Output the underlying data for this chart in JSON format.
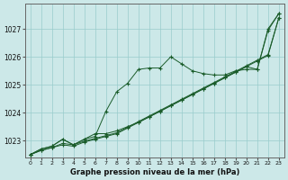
{
  "title": "Graphe pression niveau de la mer (hPa)",
  "background_color": "#cce8e8",
  "plot_bg_color": "#cce8e8",
  "grid_color": "#99cccc",
  "line_color": "#1a5c2a",
  "xlim": [
    -0.5,
    23.5
  ],
  "ylim": [
    1022.4,
    1027.9
  ],
  "xticks": [
    0,
    1,
    2,
    3,
    4,
    5,
    6,
    7,
    8,
    9,
    10,
    11,
    12,
    13,
    14,
    15,
    16,
    17,
    18,
    19,
    20,
    21,
    22,
    23
  ],
  "yticks": [
    1023,
    1024,
    1025,
    1026,
    1027
  ],
  "series": [
    [
      1022.5,
      1022.65,
      1022.75,
      1022.85,
      1022.8,
      1022.95,
      1023.05,
      1023.15,
      1023.25,
      1023.45,
      1023.65,
      1023.85,
      1024.05,
      1024.25,
      1024.45,
      1024.65,
      1024.85,
      1025.05,
      1025.25,
      1025.45,
      1025.65,
      1025.85,
      1026.05,
      1027.4
    ],
    [
      1022.5,
      1022.65,
      1022.75,
      1022.9,
      1022.85,
      1022.98,
      1023.08,
      1023.18,
      1023.28,
      1023.48,
      1023.68,
      1023.88,
      1024.08,
      1024.28,
      1024.48,
      1024.68,
      1024.88,
      1025.08,
      1025.28,
      1025.48,
      1025.68,
      1025.88,
      1026.08,
      1027.4
    ],
    [
      1022.5,
      1022.7,
      1022.8,
      1023.05,
      1022.85,
      1023.05,
      1023.15,
      1024.05,
      1024.75,
      1025.05,
      1025.55,
      1025.6,
      1025.6,
      1026.0,
      1025.75,
      1025.5,
      1025.4,
      1025.35,
      1025.35,
      1025.5,
      1025.55,
      1025.55,
      1026.95,
      1027.55
    ],
    [
      1022.5,
      1022.7,
      1022.8,
      1023.05,
      1022.85,
      1023.05,
      1023.25,
      1023.25,
      1023.35,
      1023.5,
      1023.65,
      1023.85,
      1024.05,
      1024.25,
      1024.45,
      1024.65,
      1024.85,
      1025.05,
      1025.25,
      1025.45,
      1025.65,
      1025.55,
      1027.0,
      1027.55
    ]
  ]
}
